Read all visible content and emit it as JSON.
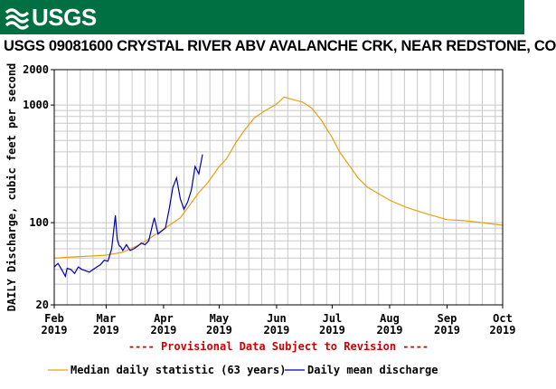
{
  "header": {
    "logo_text": "USGS"
  },
  "chart_data": {
    "type": "line",
    "title": "USGS 09081600 CRYSTAL RIVER ABV AVALANCHE CRK, NEAR REDSTONE, CO",
    "ylabel": "DAILY Discharge, cubic feet per second",
    "y_scale": "log",
    "ylim": [
      20,
      2000
    ],
    "y_ticks": [
      "20",
      "100",
      "1000",
      "2000"
    ],
    "x_ticks": [
      {
        "label": "Feb",
        "year": "2019"
      },
      {
        "label": "Mar",
        "year": "2019"
      },
      {
        "label": "Apr",
        "year": "2019"
      },
      {
        "label": "May",
        "year": "2019"
      },
      {
        "label": "Jun",
        "year": "2019"
      },
      {
        "label": "Jul",
        "year": "2019"
      },
      {
        "label": "Aug",
        "year": "2019"
      },
      {
        "label": "Sep",
        "year": "2019"
      },
      {
        "label": "Oct",
        "year": "2019"
      }
    ],
    "xlim": [
      "2019-02-01",
      "2019-10-01"
    ],
    "grid": true,
    "annotation": "---- Provisional Data Subject to Revision ----",
    "legend_position": "bottom",
    "series": [
      {
        "name": "Median daily statistic (63 years)",
        "color": "#e8a010",
        "x": [
          "2019-02-01",
          "2019-02-10",
          "2019-02-20",
          "2019-03-01",
          "2019-03-10",
          "2019-03-20",
          "2019-04-01",
          "2019-04-10",
          "2019-04-20",
          "2019-04-25",
          "2019-05-01",
          "2019-05-05",
          "2019-05-10",
          "2019-05-15",
          "2019-05-20",
          "2019-05-25",
          "2019-06-01",
          "2019-06-05",
          "2019-06-10",
          "2019-06-15",
          "2019-06-20",
          "2019-06-25",
          "2019-07-01",
          "2019-07-05",
          "2019-07-10",
          "2019-07-15",
          "2019-07-20",
          "2019-07-25",
          "2019-08-01",
          "2019-08-10",
          "2019-08-20",
          "2019-09-01",
          "2019-09-10",
          "2019-09-20",
          "2019-10-01"
        ],
        "values": [
          50,
          51,
          52,
          53,
          56,
          66,
          88,
          110,
          180,
          220,
          300,
          350,
          480,
          620,
          780,
          880,
          1020,
          1170,
          1110,
          1060,
          940,
          750,
          530,
          400,
          310,
          240,
          200,
          180,
          155,
          135,
          120,
          106,
          104,
          100,
          95
        ]
      },
      {
        "name": "Daily mean discharge",
        "color": "#0000aa",
        "x": [
          "2019-02-01",
          "2019-02-03",
          "2019-02-05",
          "2019-02-07",
          "2019-02-08",
          "2019-02-10",
          "2019-02-12",
          "2019-02-14",
          "2019-02-16",
          "2019-02-18",
          "2019-02-20",
          "2019-02-22",
          "2019-02-24",
          "2019-02-26",
          "2019-02-28",
          "2019-03-02",
          "2019-03-04",
          "2019-03-06",
          "2019-03-07",
          "2019-03-08",
          "2019-03-09",
          "2019-03-10",
          "2019-03-12",
          "2019-03-14",
          "2019-03-16",
          "2019-03-18",
          "2019-03-20",
          "2019-03-22",
          "2019-03-24",
          "2019-03-26",
          "2019-03-27",
          "2019-03-29",
          "2019-03-31",
          "2019-04-02",
          "2019-04-04",
          "2019-04-06",
          "2019-04-08",
          "2019-04-10",
          "2019-04-12",
          "2019-04-14",
          "2019-04-16",
          "2019-04-18",
          "2019-04-20",
          "2019-04-22"
        ],
        "values": [
          42,
          45,
          40,
          35,
          41,
          40,
          37,
          42,
          40,
          39,
          38,
          40,
          42,
          44,
          48,
          47,
          60,
          115,
          72,
          64,
          62,
          58,
          65,
          58,
          60,
          63,
          67,
          65,
          70,
          95,
          110,
          80,
          85,
          90,
          130,
          200,
          240,
          160,
          130,
          150,
          190,
          300,
          260,
          380
        ]
      }
    ]
  }
}
